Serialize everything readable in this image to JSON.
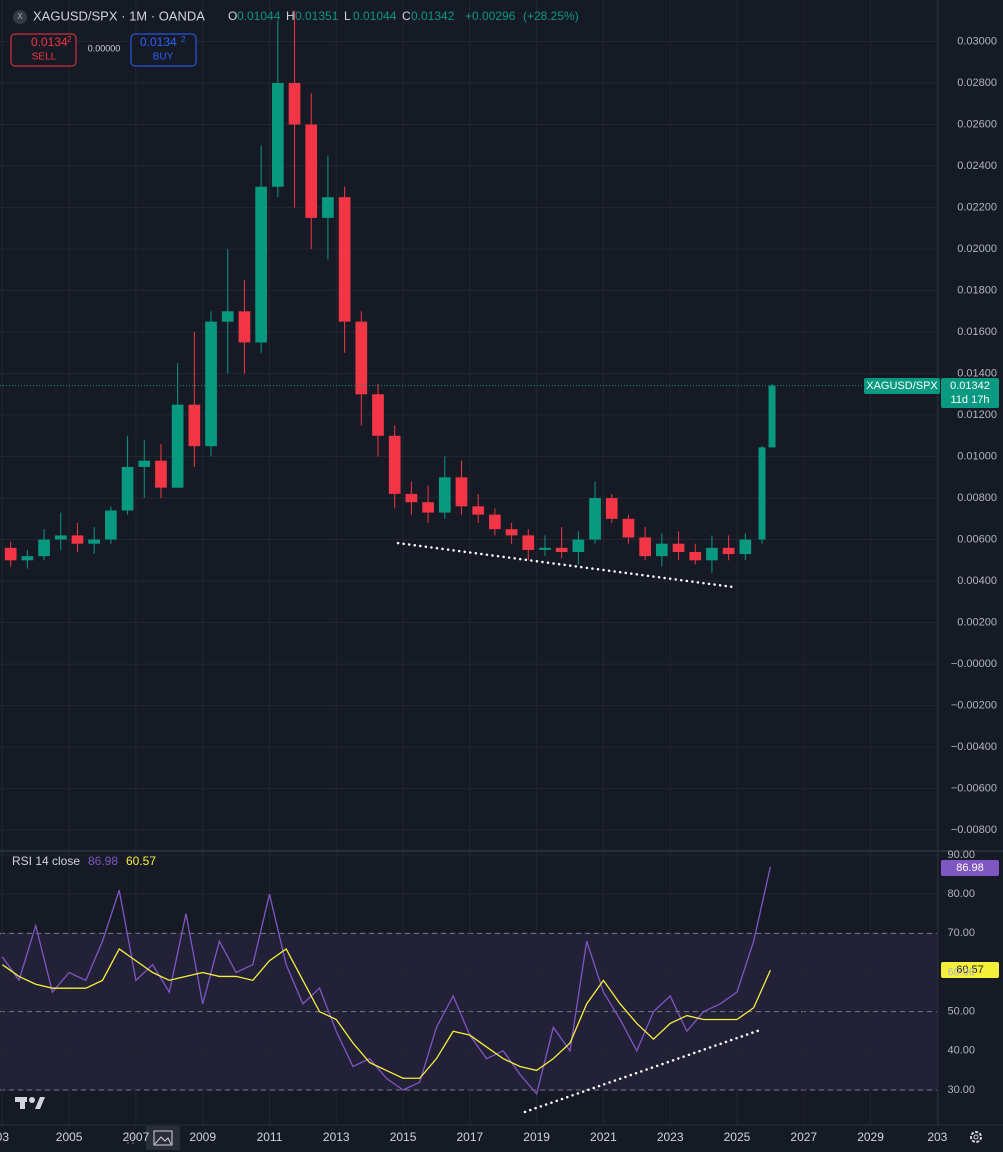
{
  "header": {
    "symbol": "XAGUSD/SPX · 1M · OANDA",
    "ohlc_letters": [
      "O",
      "H",
      "L",
      "C"
    ],
    "change": "+0.00296",
    "change_pct": "(+28.25%)"
  },
  "trade_panel": {
    "sell_price": "0.0134",
    "sell_pip": "2",
    "sell": "SELL",
    "spread": "0.00000",
    "buy_price": "0.0134",
    "buy_pip": "2",
    "buy": "BUY"
  },
  "price_tag": {
    "symbol": "XAGUSD/SPX",
    "countdown": "11d 17h"
  },
  "chart_data": [
    {
      "type": "candlestick",
      "up_color": "#089981",
      "down_color": "#f23645",
      "grid": true,
      "xlim": [
        2002.93,
        2031.02
      ],
      "ylim": [
        -0.00896,
        0.032
      ],
      "yticks": [
        {
          "value": 0.03,
          "label": "0.03000"
        },
        {
          "value": 0.028,
          "label": "0.02800"
        },
        {
          "value": 0.026,
          "label": "0.02600"
        },
        {
          "value": 0.024,
          "label": "0.02400"
        },
        {
          "value": 0.022,
          "label": "0.02200"
        },
        {
          "value": 0.02,
          "label": "0.02000"
        },
        {
          "value": 0.018,
          "label": "0.01800"
        },
        {
          "value": 0.016,
          "label": "0.01600"
        },
        {
          "value": 0.014,
          "label": "0.01400"
        },
        {
          "value": 0.012,
          "label": "0.01200"
        },
        {
          "value": 0.01,
          "label": "0.01000"
        },
        {
          "value": 0.008,
          "label": "0.00800"
        },
        {
          "value": 0.006,
          "label": "0.00600"
        },
        {
          "value": 0.004,
          "label": "0.00400"
        },
        {
          "value": 0.002,
          "label": "0.00200"
        },
        {
          "value": 0,
          "label": "−0.00000"
        },
        {
          "value": -0.002,
          "label": "−0.00200"
        },
        {
          "value": -0.004,
          "label": "−0.00400"
        },
        {
          "value": -0.006,
          "label": "−0.00600"
        },
        {
          "value": -0.008,
          "label": "−0.00800"
        }
      ],
      "x": [
        2003.25,
        2003.75,
        2004.25,
        2004.75,
        2005.25,
        2005.75,
        2006.25,
        2006.75,
        2007.25,
        2007.75,
        2008.25,
        2008.75,
        2009.25,
        2009.75,
        2010.25,
        2010.75,
        2011.25,
        2011.75,
        2012.25,
        2012.75,
        2013.25,
        2013.75,
        2014.25,
        2014.75,
        2015.25,
        2015.75,
        2016.25,
        2016.75,
        2017.25,
        2017.75,
        2018.25,
        2018.75,
        2019.25,
        2019.75,
        2020.25,
        2020.75,
        2021.25,
        2021.75,
        2022.25,
        2022.75,
        2023.25,
        2023.75,
        2024.25,
        2024.75,
        2025.25,
        2025.75,
        2026.05
      ],
      "open": [
        0.0056,
        0.005,
        0.0052,
        0.006,
        0.0062,
        0.0058,
        0.006,
        0.0074,
        0.0095,
        0.0098,
        0.0085,
        0.0125,
        0.0105,
        0.0165,
        0.017,
        0.0155,
        0.023,
        0.028,
        0.026,
        0.0215,
        0.0225,
        0.0165,
        0.013,
        0.011,
        0.0082,
        0.0078,
        0.0073,
        0.009,
        0.0076,
        0.0072,
        0.0065,
        0.0062,
        0.0055,
        0.0056,
        0.0054,
        0.006,
        0.008,
        0.007,
        0.0061,
        0.0052,
        0.0058,
        0.0054,
        0.005,
        0.0056,
        0.0053,
        0.006,
        0.01044
      ],
      "high": [
        0.0059,
        0.0055,
        0.0065,
        0.0073,
        0.0068,
        0.0066,
        0.0076,
        0.011,
        0.0108,
        0.0106,
        0.0145,
        0.016,
        0.017,
        0.02,
        0.0185,
        0.025,
        0.031,
        0.0315,
        0.0275,
        0.0245,
        0.023,
        0.017,
        0.0135,
        0.0115,
        0.0088,
        0.0086,
        0.01,
        0.0098,
        0.0082,
        0.0075,
        0.0068,
        0.0065,
        0.0062,
        0.0066,
        0.0064,
        0.0088,
        0.0082,
        0.0072,
        0.0066,
        0.0063,
        0.0064,
        0.0058,
        0.0062,
        0.0062,
        0.0063,
        0.0105,
        0.01351
      ],
      "low": [
        0.0047,
        0.0046,
        0.005,
        0.0055,
        0.0054,
        0.0053,
        0.0058,
        0.0072,
        0.008,
        0.008,
        0.0085,
        0.0095,
        0.01,
        0.014,
        0.014,
        0.015,
        0.0225,
        0.022,
        0.02,
        0.0195,
        0.015,
        0.0115,
        0.01,
        0.0075,
        0.0072,
        0.0068,
        0.007,
        0.0072,
        0.0068,
        0.0062,
        0.0058,
        0.005,
        0.0052,
        0.0051,
        0.0048,
        0.0058,
        0.0068,
        0.0058,
        0.005,
        0.0047,
        0.005,
        0.0048,
        0.0044,
        0.005,
        0.005,
        0.0058,
        0.01044
      ],
      "close": [
        0.005,
        0.0052,
        0.006,
        0.0062,
        0.0058,
        0.006,
        0.0074,
        0.0095,
        0.0098,
        0.0085,
        0.0125,
        0.0105,
        0.0165,
        0.017,
        0.0155,
        0.023,
        0.028,
        0.026,
        0.0215,
        0.0225,
        0.0165,
        0.013,
        0.011,
        0.0082,
        0.0078,
        0.0073,
        0.009,
        0.0076,
        0.0072,
        0.0065,
        0.0062,
        0.0055,
        0.0056,
        0.0054,
        0.006,
        0.008,
        0.007,
        0.0061,
        0.0052,
        0.0058,
        0.0054,
        0.005,
        0.0056,
        0.0053,
        0.006,
        0.01044,
        0.01342
      ],
      "trendline": {
        "x": [
          2014.85,
          2024.9
        ],
        "y": [
          0.00583,
          0.00371
        ]
      }
    },
    {
      "type": "line",
      "title": "RSI 14 close",
      "grid": true,
      "xlim": [
        2002.93,
        2031.02
      ],
      "ylim": [
        21.06,
        90.77
      ],
      "xticks": [
        {
          "value": 2003,
          "label": "03"
        },
        2005,
        2007,
        2009,
        2011,
        2013,
        2015,
        2017,
        2019,
        2021,
        2023,
        2025,
        2027,
        2029,
        {
          "value": 2031,
          "label": "203"
        }
      ],
      "yticks": [
        {
          "value": 90,
          "label": "90.00"
        },
        {
          "value": 80,
          "label": "80.00"
        },
        {
          "value": 70,
          "label": "70.00"
        },
        {
          "value": 60,
          "label": "60.00"
        },
        {
          "value": 50,
          "label": "50.00"
        },
        {
          "value": 40,
          "label": "40.00"
        },
        {
          "value": 30,
          "label": "30.00"
        }
      ],
      "band": [
        30,
        70
      ],
      "levels": [
        70,
        50,
        30
      ],
      "x": [
        2003,
        2003.5,
        2004,
        2004.5,
        2005,
        2005.5,
        2006,
        2006.5,
        2007,
        2007.5,
        2008,
        2008.5,
        2009,
        2009.5,
        2010,
        2010.5,
        2011,
        2011.5,
        2012,
        2012.5,
        2013,
        2013.5,
        2014,
        2014.5,
        2015,
        2015.5,
        2016,
        2016.5,
        2017,
        2017.5,
        2018,
        2018.5,
        2019,
        2019.5,
        2020,
        2020.5,
        2021,
        2021.5,
        2022,
        2022.5,
        2023,
        2023.5,
        2024,
        2024.5,
        2025,
        2025.5,
        2026
      ],
      "series": [
        {
          "color": "#7e57c2",
          "values": [
            64,
            58,
            72,
            55,
            60,
            58,
            68,
            81,
            58,
            62,
            55,
            75,
            52,
            68,
            60,
            62,
            80,
            62,
            52,
            56,
            45,
            36,
            38,
            33,
            30,
            32,
            46,
            54,
            44,
            38,
            40,
            34,
            29,
            46,
            40,
            68,
            55,
            48,
            40,
            50,
            54,
            45,
            50,
            52,
            55,
            68,
            86.98
          ]
        },
        {
          "color": "#f5f03b",
          "values": [
            62,
            59,
            57,
            56,
            56,
            56,
            58,
            66,
            63,
            60,
            58,
            59,
            60,
            59,
            59,
            58,
            63,
            66,
            58,
            50,
            48,
            42,
            37,
            35,
            33,
            33,
            38,
            45,
            44,
            41,
            38,
            36,
            35,
            38,
            42,
            52,
            58,
            52,
            47,
            43,
            47,
            49,
            48,
            48,
            48,
            51,
            60.57
          ]
        }
      ],
      "trendline": {
        "x": [
          2018.65,
          2025.69
        ],
        "y": [
          24.4,
          45.3
        ]
      }
    }
  ]
}
